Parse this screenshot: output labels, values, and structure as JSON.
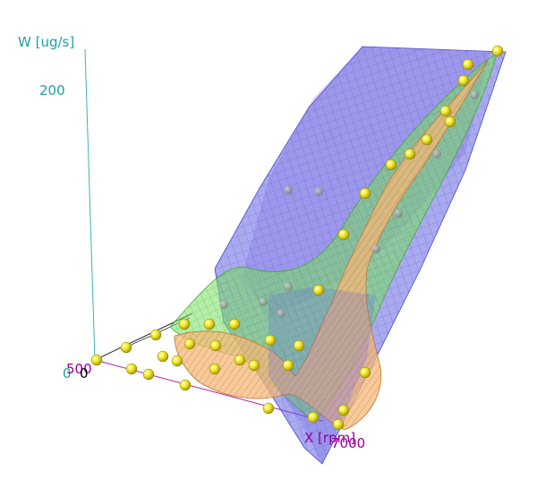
{
  "chart_data": {
    "type": "surface3d",
    "title": "",
    "axes": {
      "z": {
        "label": "W [ug/s]",
        "ticks": [
          "200",
          "0"
        ],
        "color": "#20a0a0"
      },
      "x": {
        "label": "X [rpm]",
        "ticks": [
          "500",
          "7000"
        ],
        "color": "#990099"
      },
      "y": {
        "label": "",
        "ticks": [
          "0"
        ],
        "color": "#000000"
      }
    },
    "surfaces": [
      {
        "name": "",
        "color": "#6a6ae8",
        "style": "mesh-plane"
      },
      {
        "name": "",
        "color": "#6ed65a",
        "style": "mesh"
      },
      {
        "name": "",
        "color": "#f4b070",
        "style": "mesh"
      },
      {
        "name": "",
        "color": "#9a6ab8",
        "style": "mesh"
      }
    ],
    "points_color": "#f0e820",
    "grid": false,
    "legend": "none"
  }
}
